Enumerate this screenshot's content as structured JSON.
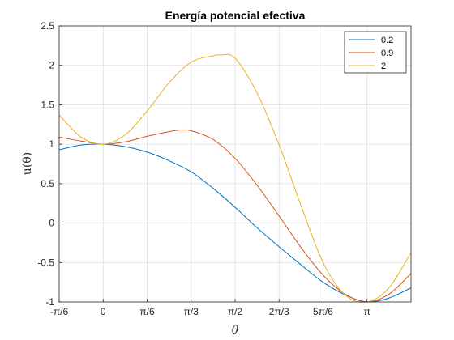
{
  "chart_data": {
    "type": "line",
    "title": "Energía potencial efectiva",
    "xlabel": "θ",
    "ylabel": "u(θ)",
    "xlim_rad": [
      -0.5236,
      3.6652
    ],
    "ylim": [
      -1,
      2.5
    ],
    "x_ticks": [
      {
        "value": -0.5236,
        "label": "-π/6"
      },
      {
        "value": 0,
        "label": "0"
      },
      {
        "value": 0.5236,
        "label": "π/6"
      },
      {
        "value": 1.0472,
        "label": "π/3"
      },
      {
        "value": 1.5708,
        "label": "π/2"
      },
      {
        "value": 2.0944,
        "label": "2π/3"
      },
      {
        "value": 2.618,
        "label": "5π/6"
      },
      {
        "value": 3.1416,
        "label": "π"
      }
    ],
    "y_ticks": [
      {
        "value": -1,
        "label": "-1"
      },
      {
        "value": -0.5,
        "label": "-0.5"
      },
      {
        "value": 0,
        "label": "0"
      },
      {
        "value": 0.5,
        "label": "0.5"
      },
      {
        "value": 1,
        "label": "1"
      },
      {
        "value": 1.5,
        "label": "1.5"
      },
      {
        "value": 2,
        "label": "2"
      },
      {
        "value": 2.5,
        "label": "2.5"
      }
    ],
    "grid": true,
    "legend_position": "top-right",
    "series": [
      {
        "name": "0.2",
        "color": "#0072BD",
        "x": [
          -0.5236,
          -0.2618,
          0,
          0.2618,
          0.5236,
          0.7854,
          1.0472,
          1.309,
          1.5708,
          1.8326,
          2.0944,
          2.3562,
          2.618,
          2.8798,
          3.1416,
          3.4034,
          3.6652
        ],
        "y": [
          0.93,
          0.99,
          1.0,
          0.97,
          0.9,
          0.79,
          0.65,
          0.44,
          0.2,
          -0.06,
          -0.3,
          -0.53,
          -0.75,
          -0.91,
          -1.0,
          -0.95,
          -0.82
        ]
      },
      {
        "name": "0.9",
        "color": "#D95319",
        "x": [
          -0.5236,
          -0.2618,
          0,
          0.2618,
          0.5236,
          0.7854,
          0.9163,
          1.0472,
          1.309,
          1.5708,
          1.8326,
          2.0944,
          2.3562,
          2.618,
          2.8798,
          3.1416,
          3.4034,
          3.6652
        ],
        "y": [
          1.09,
          1.04,
          1.0,
          1.03,
          1.1,
          1.16,
          1.18,
          1.17,
          1.06,
          0.82,
          0.48,
          0.09,
          -0.31,
          -0.66,
          -0.9,
          -1.0,
          -0.9,
          -0.64
        ]
      },
      {
        "name": "2",
        "color": "#EDB120",
        "x": [
          -0.5236,
          -0.2618,
          0,
          0.2618,
          0.5236,
          0.7854,
          1.0472,
          1.309,
          1.4,
          1.5708,
          1.8326,
          2.0944,
          2.3562,
          2.618,
          2.8798,
          3.1416,
          3.4034,
          3.6652
        ],
        "y": [
          1.37,
          1.09,
          1.0,
          1.12,
          1.42,
          1.78,
          2.04,
          2.12,
          2.13,
          2.09,
          1.65,
          0.99,
          0.22,
          -0.5,
          -0.91,
          -1.0,
          -0.82,
          -0.37
        ]
      }
    ]
  }
}
